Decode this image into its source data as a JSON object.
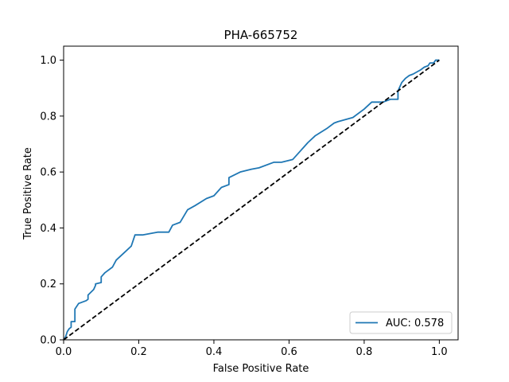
{
  "chart_data": {
    "type": "line",
    "title": "PHA-665752",
    "xlabel": "False Positive Rate",
    "ylabel": "True Positive Rate",
    "xlim": [
      0.0,
      1.05
    ],
    "ylim": [
      0.0,
      1.05
    ],
    "xticks": [
      0.0,
      0.2,
      0.4,
      0.6,
      0.8,
      1.0
    ],
    "yticks": [
      0.0,
      0.2,
      0.4,
      0.6,
      0.8,
      1.0
    ],
    "xtick_labels": [
      "0.0",
      "0.2",
      "0.4",
      "0.6",
      "0.8",
      "1.0"
    ],
    "ytick_labels": [
      "0.0",
      "0.2",
      "0.4",
      "0.6",
      "0.8",
      "1.0"
    ],
    "grid": false,
    "legend_position": "lower-right",
    "series": [
      {
        "name": "AUC: 0.578",
        "color": "#1f77b4",
        "style": "solid",
        "x": [
          0.0,
          0.005,
          0.01,
          0.015,
          0.02,
          0.02,
          0.03,
          0.03,
          0.04,
          0.05,
          0.06,
          0.065,
          0.065,
          0.08,
          0.085,
          0.085,
          0.1,
          0.1,
          0.11,
          0.13,
          0.14,
          0.16,
          0.18,
          0.19,
          0.21,
          0.25,
          0.28,
          0.29,
          0.31,
          0.33,
          0.35,
          0.38,
          0.4,
          0.42,
          0.44,
          0.44,
          0.47,
          0.5,
          0.52,
          0.56,
          0.58,
          0.61,
          0.63,
          0.65,
          0.67,
          0.7,
          0.72,
          0.73,
          0.77,
          0.8,
          0.82,
          0.83,
          0.85,
          0.87,
          0.89,
          0.89,
          0.9,
          0.91,
          0.92,
          0.93,
          0.95,
          0.96,
          0.97,
          0.975,
          0.985,
          0.99,
          1.0
        ],
        "y": [
          0.0,
          0.01,
          0.03,
          0.04,
          0.045,
          0.065,
          0.065,
          0.11,
          0.13,
          0.135,
          0.14,
          0.145,
          0.16,
          0.18,
          0.195,
          0.2,
          0.205,
          0.225,
          0.24,
          0.26,
          0.285,
          0.31,
          0.335,
          0.375,
          0.375,
          0.385,
          0.385,
          0.41,
          0.42,
          0.465,
          0.48,
          0.505,
          0.515,
          0.545,
          0.555,
          0.58,
          0.6,
          0.61,
          0.615,
          0.635,
          0.635,
          0.645,
          0.675,
          0.705,
          0.73,
          0.755,
          0.775,
          0.78,
          0.795,
          0.825,
          0.85,
          0.85,
          0.85,
          0.86,
          0.86,
          0.89,
          0.92,
          0.935,
          0.945,
          0.95,
          0.965,
          0.975,
          0.98,
          0.99,
          0.99,
          1.0,
          1.0
        ]
      },
      {
        "name": "",
        "color": "#000000",
        "style": "dashed",
        "x": [
          0.0,
          1.0
        ],
        "y": [
          0.0,
          1.0
        ]
      }
    ]
  }
}
